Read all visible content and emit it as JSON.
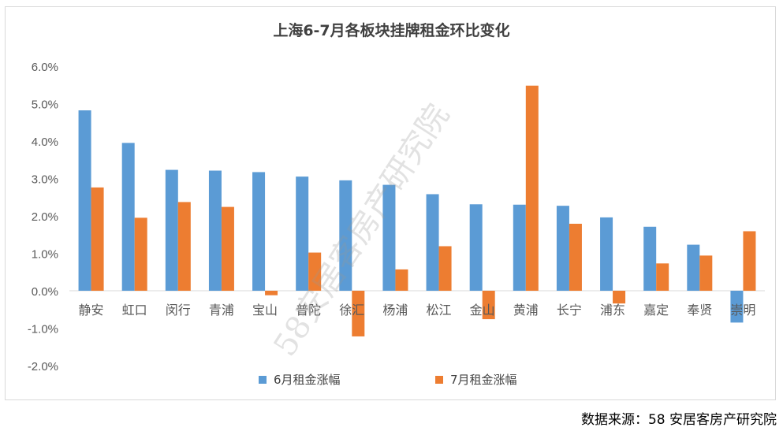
{
  "source_note": "数据来源：58 安居客房产研究院",
  "watermark": "58安居客房产研究院",
  "colors": {
    "series1": "#5b9bd5",
    "series2": "#ed7d31",
    "axis_text": "#595959",
    "gridline": "#d9d9d9"
  },
  "chart_data": {
    "type": "bar",
    "title": "上海6-7月各板块挂牌租金环比变化",
    "xlabel": "",
    "ylabel": "",
    "ylim": [
      -2.0,
      6.0
    ],
    "yticks": [
      "6.0%",
      "5.0%",
      "4.0%",
      "3.0%",
      "2.0%",
      "1.0%",
      "0.0%",
      "-1.0%",
      "-2.0%"
    ],
    "grid": false,
    "legend_position": "bottom",
    "categories": [
      "静安",
      "虹口",
      "闵行",
      "青浦",
      "宝山",
      "普陀",
      "徐汇",
      "杨浦",
      "松江",
      "金山",
      "黄浦",
      "长宁",
      "浦东",
      "嘉定",
      "奉贤",
      "崇明"
    ],
    "series": [
      {
        "name": "6月租金涨幅",
        "values": [
          4.82,
          3.95,
          3.23,
          3.21,
          3.17,
          3.05,
          2.95,
          2.83,
          2.58,
          2.31,
          2.3,
          2.27,
          1.96,
          1.71,
          1.23,
          -0.85
        ]
      },
      {
        "name": "7月租金涨幅",
        "values": [
          2.76,
          1.95,
          2.37,
          2.24,
          -0.12,
          1.02,
          -1.22,
          0.57,
          1.19,
          -0.76,
          5.48,
          1.79,
          -0.34,
          0.73,
          0.94,
          1.59
        ]
      }
    ]
  }
}
